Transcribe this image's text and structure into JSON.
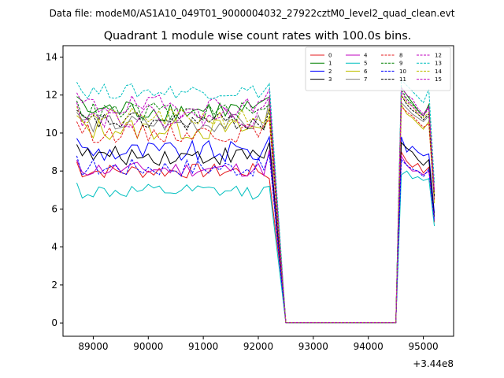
{
  "chart_data": {
    "type": "line",
    "suptitle": "Data file: modeM0/AS1A10_049T01_9000004032_27922cztM0_level2_quad_clean.evt",
    "title": "Quadrant 1 module wise count rates with 100.0s bins.",
    "xlabel": "",
    "ylabel": "",
    "x_offset_label": "+3.44e8",
    "xlim": [
      88450,
      95550
    ],
    "ylim": [
      -0.7,
      14.6
    ],
    "x_ticks": [
      89000,
      90000,
      91000,
      92000,
      93000,
      94000,
      95000
    ],
    "x_tick_labels": [
      "89000",
      "90000",
      "91000",
      "92000",
      "93000",
      "94000",
      "95000"
    ],
    "y_ticks": [
      0,
      2,
      4,
      6,
      8,
      10,
      12,
      14
    ],
    "y_tick_labels": [
      "0",
      "2",
      "4",
      "6",
      "8",
      "10",
      "12",
      "14"
    ],
    "legend": {
      "position": "top-right",
      "columns": 4
    },
    "segments": [
      {
        "start": 88700,
        "count": 36,
        "step": 100
      },
      {
        "start": 92400,
        "count": 22,
        "step": 100
      },
      {
        "start": 94600,
        "count": 7,
        "step": 100
      }
    ],
    "series": [
      {
        "name": "0",
        "color": "#e41a1c",
        "style": "solid",
        "base": 8.0,
        "amp": 0.4,
        "gap_end": 7.6,
        "post": [
          9.0,
          8.5,
          8.2,
          8.4,
          7.9,
          8.2,
          5.3
        ]
      },
      {
        "name": "1",
        "color": "#008000",
        "style": "solid",
        "base": 11.2,
        "amp": 0.6,
        "gap_end": 11.9,
        "post": [
          12.4,
          12.0,
          11.6,
          11.2,
          10.9,
          11.5,
          6.8
        ]
      },
      {
        "name": "2",
        "color": "#0000ff",
        "style": "solid",
        "base": 9.0,
        "amp": 0.6,
        "gap_end": 9.8,
        "post": [
          9.8,
          9.0,
          9.3,
          9.0,
          8.8,
          8.9,
          5.8
        ]
      },
      {
        "name": "3",
        "color": "#000000",
        "style": "solid",
        "base": 8.8,
        "amp": 0.5,
        "gap_end": 9.5,
        "post": [
          9.5,
          9.2,
          9.0,
          8.6,
          8.3,
          8.6,
          5.6
        ]
      },
      {
        "name": "4",
        "color": "#bf00bf",
        "style": "solid",
        "base": 8.1,
        "amp": 0.4,
        "gap_end": 9.1,
        "post": [
          8.8,
          8.3,
          8.0,
          8.0,
          7.8,
          8.0,
          5.4
        ]
      },
      {
        "name": "5",
        "color": "#00bfbf",
        "style": "solid",
        "base": 6.9,
        "amp": 0.4,
        "gap_end": 7.2,
        "post": [
          7.8,
          8.0,
          7.6,
          7.7,
          7.5,
          7.6,
          5.1
        ]
      },
      {
        "name": "6",
        "color": "#bfbf00",
        "style": "solid",
        "base": 10.2,
        "amp": 0.6,
        "gap_end": 10.9,
        "post": [
          11.5,
          11.0,
          10.8,
          10.5,
          10.2,
          10.6,
          6.3
        ]
      },
      {
        "name": "7",
        "color": "#808080",
        "style": "solid",
        "base": 10.5,
        "amp": 0.5,
        "gap_end": 11.8,
        "post": [
          11.6,
          11.3,
          11.0,
          10.8,
          10.6,
          10.9,
          6.5
        ]
      },
      {
        "name": "8",
        "color": "#e41a1c",
        "style": "dashed",
        "base": 10.0,
        "amp": 0.5,
        "gap_end": 10.7,
        "post": [
          11.4,
          11.1,
          10.9,
          10.6,
          10.3,
          10.5,
          6.5
        ]
      },
      {
        "name": "9",
        "color": "#008000",
        "style": "dashed",
        "base": 11.1,
        "amp": 0.5,
        "gap_end": 11.5,
        "post": [
          12.3,
          11.8,
          11.5,
          11.2,
          10.9,
          11.4,
          6.8
        ]
      },
      {
        "name": "10",
        "color": "#0000ff",
        "style": "dashed",
        "base": 8.2,
        "amp": 0.5,
        "gap_end": 8.9,
        "post": [
          8.6,
          8.3,
          8.1,
          8.0,
          7.7,
          8.1,
          5.4
        ]
      },
      {
        "name": "11",
        "color": "#000000",
        "style": "dashed",
        "base": 10.6,
        "amp": 0.5,
        "gap_end": 11.3,
        "post": [
          12.0,
          11.5,
          11.2,
          11.0,
          10.7,
          11.0,
          6.7
        ]
      },
      {
        "name": "12",
        "color": "#bf00bf",
        "style": "dashed",
        "base": 11.4,
        "amp": 0.6,
        "gap_end": 12.3,
        "post": [
          12.4,
          12.0,
          11.8,
          11.3,
          11.0,
          11.4,
          7.0
        ]
      },
      {
        "name": "13",
        "color": "#00bfbf",
        "style": "dashed",
        "base": 12.2,
        "amp": 0.4,
        "gap_end": 12.6,
        "post": [
          12.8,
          12.5,
          12.2,
          11.9,
          11.6,
          12.3,
          7.4
        ]
      },
      {
        "name": "14",
        "color": "#bfbf00",
        "style": "dashed",
        "base": 10.8,
        "amp": 0.5,
        "gap_end": 11.3,
        "post": [
          12.0,
          11.6,
          11.4,
          11.0,
          10.8,
          11.1,
          6.8
        ]
      },
      {
        "name": "15",
        "color": "#bf00bf",
        "style": "dashed",
        "base": 10.9,
        "amp": 0.6,
        "gap_end": 11.9,
        "post": [
          12.2,
          11.7,
          11.4,
          11.1,
          10.9,
          11.3,
          6.9
        ]
      }
    ]
  }
}
